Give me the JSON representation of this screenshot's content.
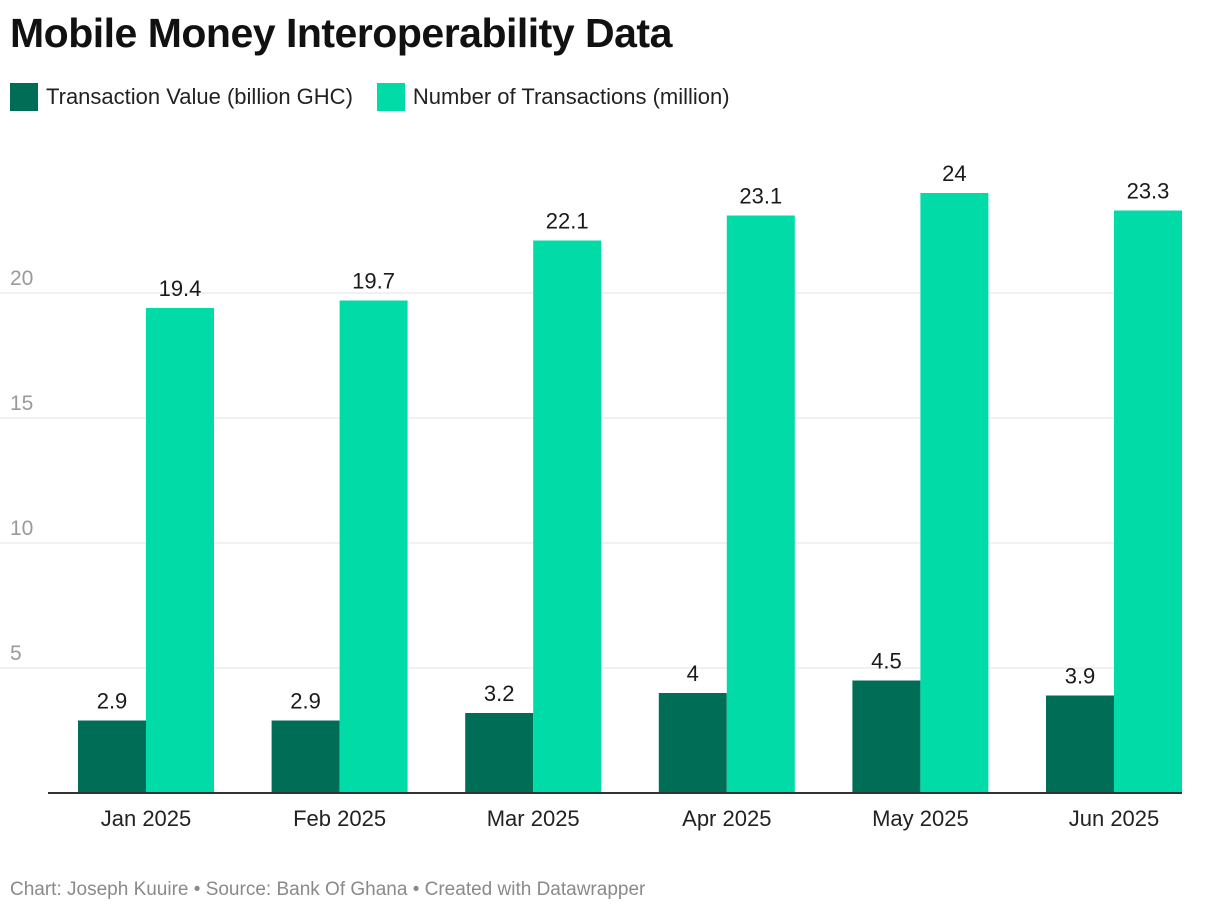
{
  "title": "Mobile Money Interoperability Data",
  "footer": "Chart: Joseph Kuuire • Source: Bank Of Ghana • Created with Datawrapper",
  "colors": {
    "series_1": "#006e57",
    "series_2": "#00dba8",
    "grid": "#e3e3e3",
    "baseline": "#333333"
  },
  "chart_data": {
    "type": "bar",
    "categories": [
      "Jan 2025",
      "Feb 2025",
      "Mar 2025",
      "Apr 2025",
      "May 2025",
      "Jun 2025"
    ],
    "series": [
      {
        "name": "Transaction Value (billion GHC)",
        "values": [
          2.9,
          2.9,
          3.2,
          4,
          4.5,
          3.9
        ],
        "labels": [
          "2.9",
          "2.9",
          "3.2",
          "4",
          "4.5",
          "3.9"
        ]
      },
      {
        "name": "Number of Transactions (million)",
        "values": [
          19.4,
          19.7,
          22.1,
          23.1,
          24,
          23.3
        ],
        "labels": [
          "19.4",
          "19.7",
          "22.1",
          "23.1",
          "24",
          "23.3"
        ]
      }
    ],
    "y_ticks": [
      "5",
      "10",
      "15",
      "20"
    ],
    "ylim": [
      0,
      25
    ],
    "grid": true,
    "legend_position": "top-left"
  }
}
